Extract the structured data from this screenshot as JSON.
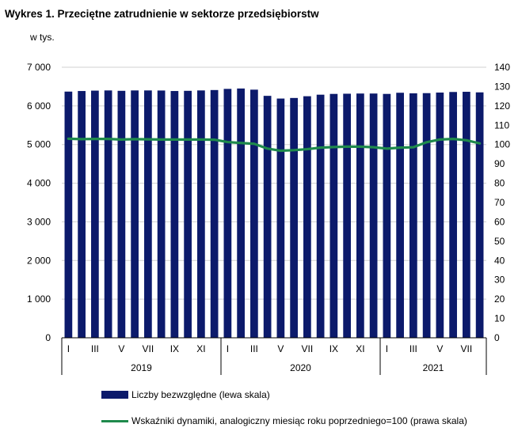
{
  "chart_data": {
    "type": "bar+line",
    "title": "Wykres 1. Przeciętne zatrudnienie w sektorze przedsiębiorstw",
    "left_axis_unit": "w tys.",
    "left_ylim": [
      0,
      7000
    ],
    "left_ticks": [
      "0",
      "1 000",
      "2 000",
      "3 000",
      "4 000",
      "5 000",
      "6 000",
      "7 000"
    ],
    "right_ylim": [
      0,
      140
    ],
    "right_ticks": [
      "0",
      "10",
      "20",
      "30",
      "40",
      "50",
      "60",
      "70",
      "80",
      "90",
      "100",
      "110",
      "120",
      "130",
      "140"
    ],
    "month_labels": [
      "I",
      "III",
      "V",
      "VII",
      "IX",
      "XI",
      "I",
      "III",
      "V",
      "VII",
      "IX",
      "XI",
      "I",
      "III",
      "V",
      "VII"
    ],
    "years": [
      "2019",
      "2020",
      "2021"
    ],
    "months_per_year": [
      12,
      12,
      8
    ],
    "series": [
      {
        "name": "Liczby bezwzględne (lewa skala)",
        "axis": "left",
        "color": "#0c1a6b",
        "values": [
          6370,
          6385,
          6395,
          6400,
          6390,
          6400,
          6400,
          6398,
          6385,
          6390,
          6400,
          6410,
          6440,
          6450,
          6420,
          6260,
          6190,
          6205,
          6250,
          6290,
          6310,
          6315,
          6320,
          6320,
          6310,
          6340,
          6325,
          6330,
          6345,
          6360,
          6365,
          6350
        ]
      },
      {
        "name": "Wskaźniki dynamiki, analogiczny miesiąc roku poprzedniego=100 (prawa skala)",
        "axis": "right",
        "color": "#1f8a4c",
        "values": [
          103.0,
          102.8,
          102.9,
          102.9,
          102.6,
          102.8,
          102.7,
          102.6,
          102.6,
          102.6,
          102.6,
          102.5,
          101.3,
          100.8,
          100.4,
          97.9,
          96.8,
          97.1,
          97.6,
          98.4,
          98.7,
          98.9,
          98.9,
          98.6,
          97.9,
          98.4,
          98.6,
          101.2,
          102.6,
          102.9,
          102.2,
          100.6
        ]
      }
    ]
  }
}
